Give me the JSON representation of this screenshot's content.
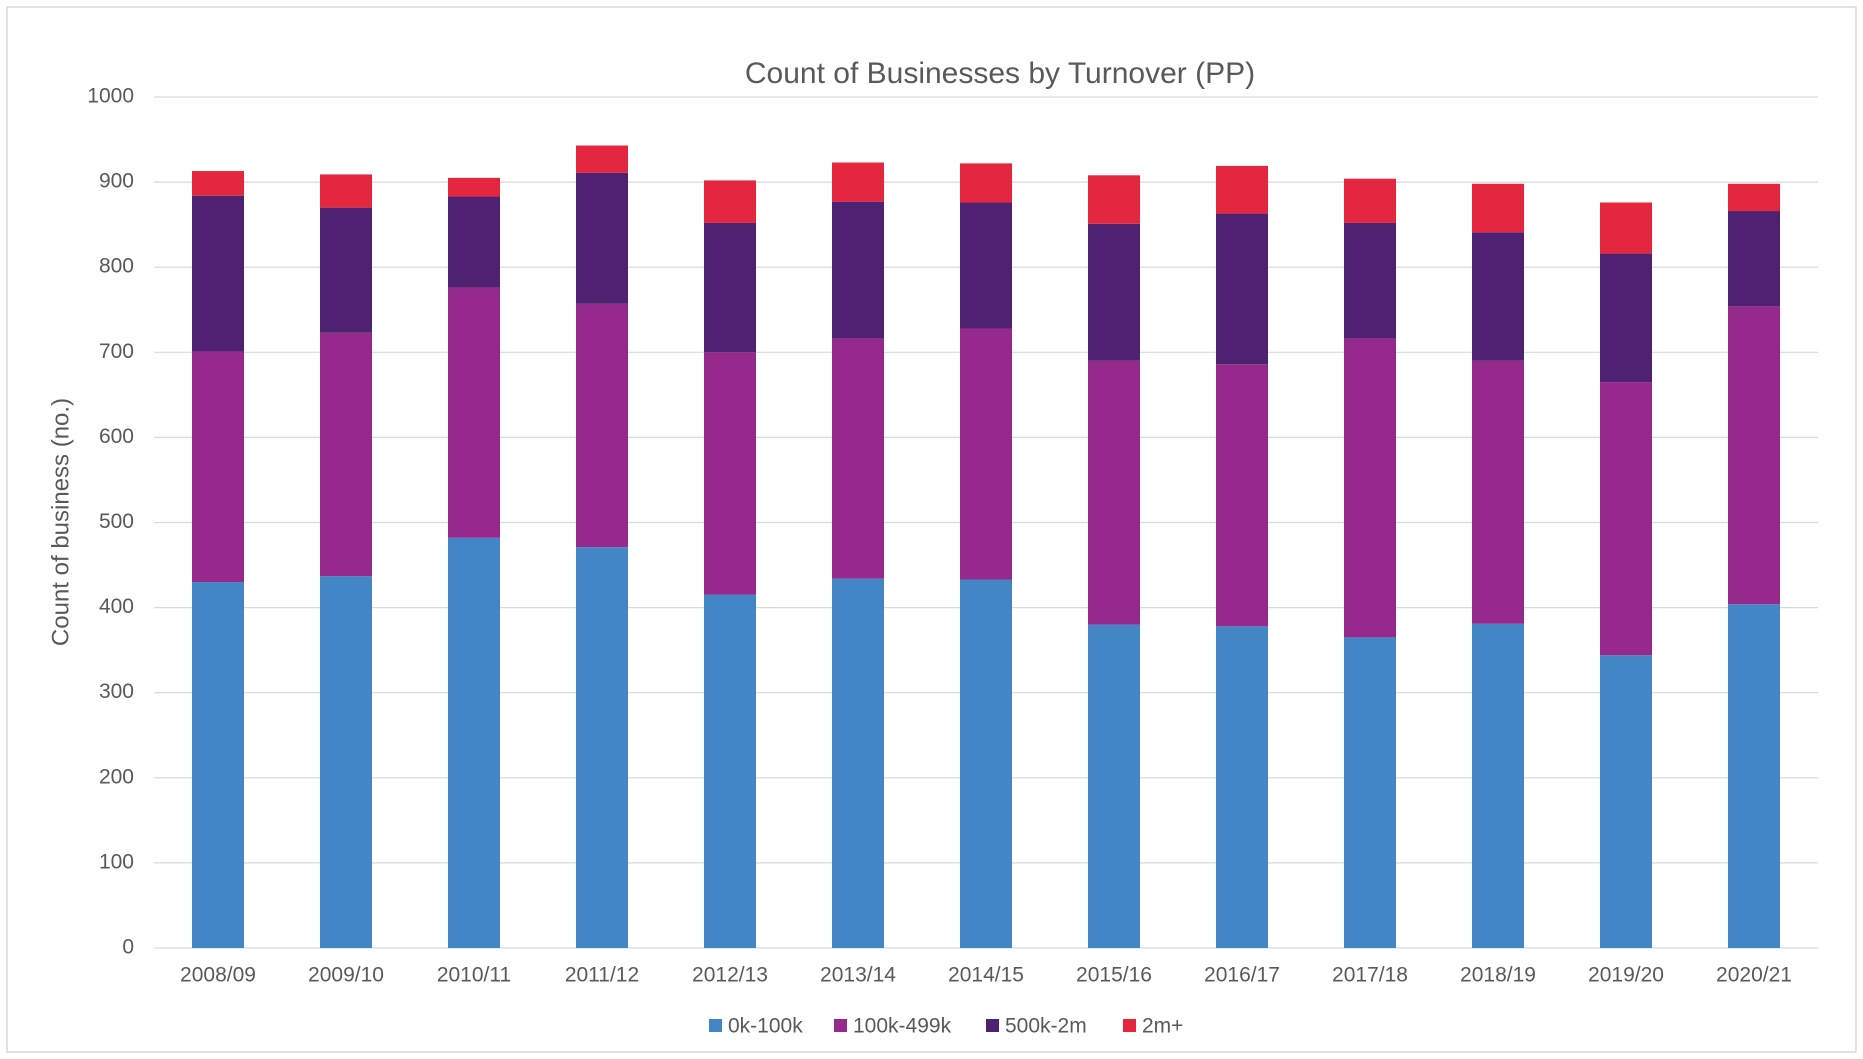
{
  "chart_data": {
    "type": "stacked_bar",
    "title": "Count of Businesses by Turnover (PP)",
    "y_label": "Count of business (no.)",
    "categories": [
      "2008/09",
      "2009/10",
      "2010/11",
      "2011/12",
      "2012/13",
      "2013/14",
      "2014/15",
      "2015/16",
      "2016/17",
      "2017/18",
      "2018/19",
      "2019/20",
      "2020/21"
    ],
    "series": [
      {
        "name": "0k-100k",
        "color": "#4286c6",
        "values": [
          430,
          437,
          482,
          471,
          415,
          434,
          433,
          380,
          378,
          365,
          381,
          344,
          404
        ]
      },
      {
        "name": "100k-499k",
        "color": "#952a8c",
        "values": [
          271,
          286,
          294,
          286,
          285,
          282,
          295,
          310,
          308,
          351,
          309,
          321,
          350
        ]
      },
      {
        "name": "500k-2m",
        "color": "#4f2172",
        "values": [
          183,
          147,
          107,
          154,
          152,
          161,
          148,
          161,
          177,
          136,
          151,
          151,
          112
        ]
      },
      {
        "name": "2m+",
        "color": "#e4273f",
        "values": [
          29,
          39,
          22,
          32,
          50,
          46,
          46,
          57,
          56,
          52,
          57,
          60,
          32
        ]
      }
    ],
    "ylim": [
      0,
      1000
    ],
    "yticks": [
      0,
      100,
      200,
      300,
      400,
      500,
      600,
      700,
      800,
      900,
      1000
    ],
    "grid": true,
    "legend": "bottom"
  }
}
